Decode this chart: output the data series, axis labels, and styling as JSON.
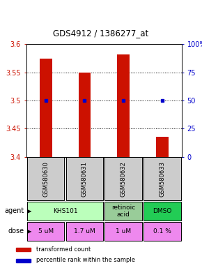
{
  "title": "GDS4912 / 1386277_at",
  "samples": [
    "GSM580630",
    "GSM580631",
    "GSM580632",
    "GSM580633"
  ],
  "bar_values": [
    3.575,
    3.55,
    3.582,
    3.435
  ],
  "bar_bottom": 3.4,
  "percentile_values": [
    50,
    50,
    50,
    50
  ],
  "ylim": [
    3.4,
    3.6
  ],
  "y_ticks": [
    3.4,
    3.45,
    3.5,
    3.55,
    3.6
  ],
  "y2_ticks": [
    0,
    25,
    50,
    75,
    100
  ],
  "y2_labels": [
    "0",
    "25",
    "50",
    "75",
    "100%"
  ],
  "bar_color": "#cc1100",
  "dot_color": "#0000cc",
  "left_label_color": "#cc1100",
  "right_label_color": "#0000cc",
  "sample_bg_color": "#cccccc",
  "agent_data": [
    {
      "label": "KHS101",
      "start": 0,
      "end": 2,
      "color": "#bbffbb"
    },
    {
      "label": "retinoic\nacid",
      "start": 2,
      "end": 3,
      "color": "#99cc99"
    },
    {
      "label": "DMSO",
      "start": 3,
      "end": 4,
      "color": "#22cc55"
    }
  ],
  "dose_labels": [
    "5 uM",
    "1.7 uM",
    "1 uM",
    "0.1 %"
  ],
  "dose_color": "#ee88ee",
  "n": 4
}
